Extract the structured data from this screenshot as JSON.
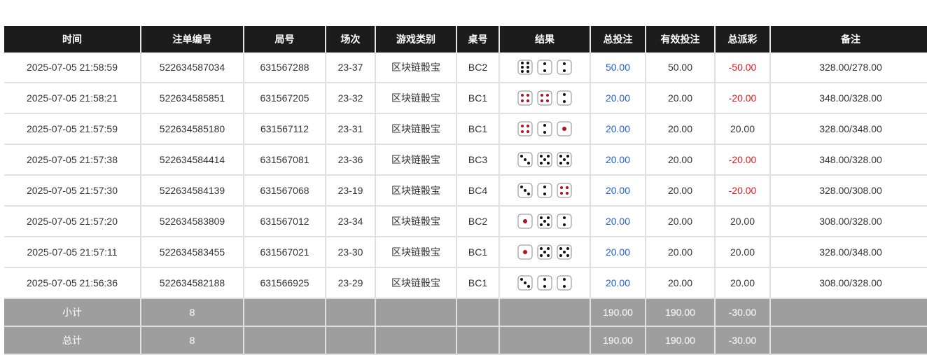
{
  "headers": [
    "时间",
    "注单编号",
    "局号",
    "场次",
    "游戏类别",
    "桌号",
    "结果",
    "总投注",
    "有效投注",
    "总派彩",
    "备注"
  ],
  "rows": [
    {
      "time": "2025-07-05 21:58:59",
      "bet_no": "522634587034",
      "round": "631567288",
      "session": "23-37",
      "game": "区块链骰宝",
      "table": "BC2",
      "dice": [
        6,
        2,
        2
      ],
      "total_bet": "50.00",
      "valid_bet": "50.00",
      "payout": "-50.00",
      "note": "328.00/278.00"
    },
    {
      "time": "2025-07-05 21:58:21",
      "bet_no": "522634585851",
      "round": "631567205",
      "session": "23-32",
      "game": "区块链骰宝",
      "table": "BC1",
      "dice": [
        4,
        4,
        2
      ],
      "total_bet": "20.00",
      "valid_bet": "20.00",
      "payout": "-20.00",
      "note": "348.00/328.00"
    },
    {
      "time": "2025-07-05 21:57:59",
      "bet_no": "522634585180",
      "round": "631567112",
      "session": "23-31",
      "game": "区块链骰宝",
      "table": "BC1",
      "dice": [
        4,
        2,
        1
      ],
      "total_bet": "20.00",
      "valid_bet": "20.00",
      "payout": "20.00",
      "note": "328.00/348.00"
    },
    {
      "time": "2025-07-05 21:57:38",
      "bet_no": "522634584414",
      "round": "631567081",
      "session": "23-36",
      "game": "区块链骰宝",
      "table": "BC3",
      "dice": [
        3,
        5,
        5
      ],
      "total_bet": "20.00",
      "valid_bet": "20.00",
      "payout": "-20.00",
      "note": "348.00/328.00"
    },
    {
      "time": "2025-07-05 21:57:30",
      "bet_no": "522634584139",
      "round": "631567068",
      "session": "23-19",
      "game": "区块链骰宝",
      "table": "BC4",
      "dice": [
        3,
        2,
        4
      ],
      "total_bet": "20.00",
      "valid_bet": "20.00",
      "payout": "-20.00",
      "note": "328.00/308.00"
    },
    {
      "time": "2025-07-05 21:57:20",
      "bet_no": "522634583809",
      "round": "631567012",
      "session": "23-34",
      "game": "区块链骰宝",
      "table": "BC2",
      "dice": [
        1,
        5,
        2
      ],
      "total_bet": "20.00",
      "valid_bet": "20.00",
      "payout": "20.00",
      "note": "308.00/328.00"
    },
    {
      "time": "2025-07-05 21:57:11",
      "bet_no": "522634583455",
      "round": "631567021",
      "session": "23-30",
      "game": "区块链骰宝",
      "table": "BC1",
      "dice": [
        1,
        5,
        5
      ],
      "total_bet": "20.00",
      "valid_bet": "20.00",
      "payout": "20.00",
      "note": "328.00/348.00"
    },
    {
      "time": "2025-07-05 21:56:36",
      "bet_no": "522634582188",
      "round": "631566925",
      "session": "23-29",
      "game": "区块链骰宝",
      "table": "BC1",
      "dice": [
        3,
        2,
        2
      ],
      "total_bet": "20.00",
      "valid_bet": "20.00",
      "payout": "20.00",
      "note": "308.00/328.00"
    }
  ],
  "subtotal": {
    "label": "小计",
    "count": "8",
    "total_bet": "190.00",
    "valid_bet": "190.00",
    "payout": "-30.00"
  },
  "grand_total": {
    "label": "总计",
    "count": "8",
    "total_bet": "190.00",
    "valid_bet": "190.00",
    "payout": "-30.00"
  },
  "colors": {
    "header": "#1c1c1c",
    "bet_blue": "#1f5fcc",
    "loss_red": "#e0191f",
    "summary_gray": "#9e9e9e"
  }
}
